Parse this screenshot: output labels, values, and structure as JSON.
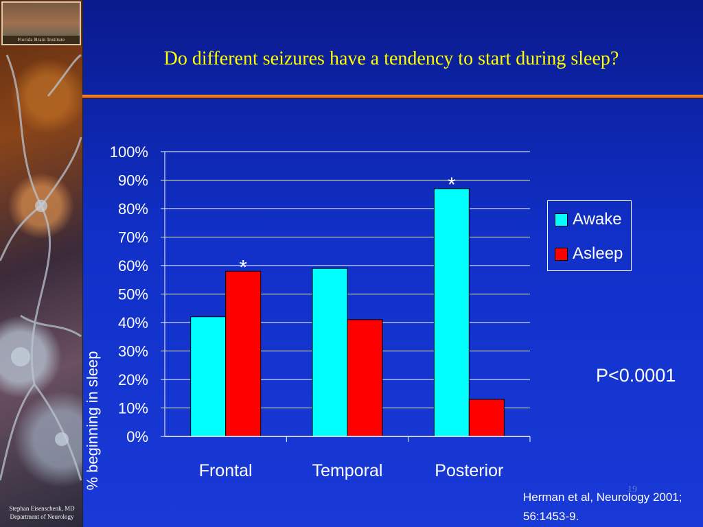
{
  "slide": {
    "title": "Do different seizures have a tendency to start during sleep?",
    "logo_text": "Florida Brain Institute",
    "credit_line1": "Stephan Eisenschenk, MD",
    "credit_line2": "Department of Neurology",
    "p_value": "P<0.0001",
    "citation_line1": "Herman et al, Neurology 2001;",
    "citation_line2": "56:1453-9.",
    "slide_number": "19"
  },
  "colors": {
    "background": "#1030c8",
    "title": "#ffff00",
    "awake": "#00ffff",
    "asleep": "#ff0000"
  },
  "chart_data": {
    "type": "bar",
    "title": "",
    "xlabel": "",
    "ylabel": "% beginning in sleep",
    "categories": [
      "Frontal",
      "Temporal",
      "Posterior"
    ],
    "series": [
      {
        "name": "Awake",
        "color": "#00ffff",
        "values": [
          42,
          59,
          87
        ]
      },
      {
        "name": "Asleep",
        "color": "#ff0000",
        "values": [
          58,
          41,
          13
        ]
      }
    ],
    "ylim": [
      0,
      100
    ],
    "yticks": [
      0,
      10,
      20,
      30,
      40,
      50,
      60,
      70,
      80,
      90,
      100
    ],
    "ytick_labels": [
      "0%",
      "10%",
      "20%",
      "30%",
      "40%",
      "50%",
      "60%",
      "70%",
      "80%",
      "90%",
      "100%"
    ],
    "grid": true,
    "legend_position": "right",
    "annotations": [
      {
        "text": "*",
        "category": "Frontal",
        "series": "Asleep"
      },
      {
        "text": "*",
        "category": "Posterior",
        "series": "Awake"
      }
    ]
  }
}
